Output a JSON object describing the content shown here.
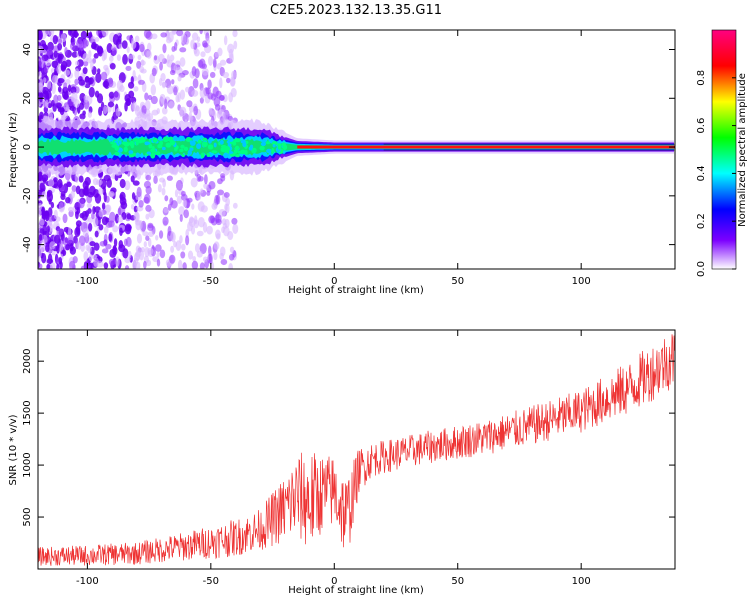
{
  "title": "C2E5.2023.132.13.35.G11",
  "chart_data": [
    {
      "type": "heatmap",
      "xlabel": "Height of straight line (km)",
      "ylabel": "Frequency (Hz)",
      "xlim": [
        -120,
        138
      ],
      "ylim": [
        -50,
        48
      ],
      "xticks": [
        -100,
        -50,
        0,
        50,
        100
      ],
      "yticks": [
        -40,
        -20,
        0,
        20,
        40
      ],
      "colorbar": {
        "label": "Normalized spectral amplitude",
        "range": [
          0,
          1
        ],
        "ticks": [
          "0.0",
          "0.2",
          "0.4",
          "0.6",
          "0.8"
        ],
        "colors": [
          "#ffffff",
          "#7c00ff",
          "#0000ff",
          "#00ffff",
          "#00ff00",
          "#ffff00",
          "#ff0000",
          "#ff0080"
        ]
      },
      "summary": {
        "scattered_noise_region_km": [
          -120,
          -40
        ],
        "main_band_center_hz": 0,
        "band_halfwidth_hz": [
          [
            -90,
            6
          ],
          [
            -60,
            6
          ],
          [
            -30,
            6
          ],
          [
            -15,
            2
          ],
          [
            0,
            1.5
          ],
          [
            40,
            1.5
          ],
          [
            100,
            1.5
          ],
          [
            138,
            1.5
          ]
        ]
      }
    },
    {
      "type": "line",
      "xlabel": "Height of straight line (km)",
      "ylabel": "SNR (10 * v/v)",
      "xlim": [
        -120,
        138
      ],
      "ylim": [
        0,
        2300
      ],
      "xticks": [
        -100,
        -50,
        0,
        50,
        100
      ],
      "yticks": [
        500,
        1000,
        1500,
        2000
      ],
      "series": [
        {
          "color": "#ee3333",
          "x": [
            -120,
            -100,
            -80,
            -60,
            -40,
            -30,
            -20,
            -15,
            -10,
            -5,
            0,
            5,
            10,
            15,
            20,
            30,
            40,
            60,
            80,
            100,
            120,
            138
          ],
          "y": [
            120,
            130,
            150,
            220,
            300,
            380,
            580,
            700,
            650,
            730,
            750,
            480,
            950,
            1050,
            1080,
            1130,
            1180,
            1260,
            1380,
            1520,
            1750,
            2050
          ],
          "noise_amplitude": [
            90,
            100,
            110,
            140,
            180,
            200,
            330,
            420,
            500,
            380,
            350,
            420,
            220,
            170,
            160,
            160,
            160,
            170,
            190,
            210,
            260,
            300
          ]
        }
      ]
    }
  ]
}
